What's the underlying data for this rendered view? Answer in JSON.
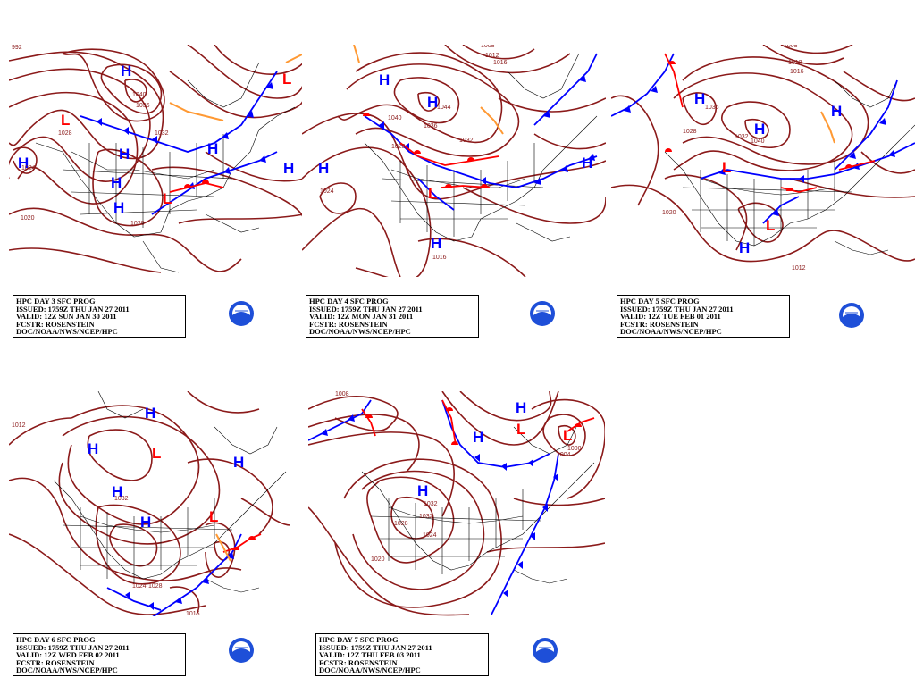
{
  "panels": [
    {
      "id": "day3",
      "title": "HPC DAY 3 SFC PROG",
      "issued": "ISSUED: 1759Z THU JAN 27 2011",
      "valid": "VALID: 12Z SUN JAN 30 2011",
      "fcstr": "FCSTR: ROSENSTEIN",
      "source": "DOC/NOAA/NWS/NCEP/HPC",
      "highs": [
        "H",
        "H",
        "H",
        "H",
        "H",
        "H"
      ],
      "lows": [
        "L",
        "L",
        "L"
      ],
      "isobars": [
        "992",
        "1024",
        "1028",
        "1024",
        "1040",
        "1036",
        "1032",
        "1020",
        "1020"
      ]
    },
    {
      "id": "day4",
      "title": "HPC DAY 4 SFC PROG",
      "issued": "ISSUED: 1759Z THU JAN 27 2011",
      "valid": "VALID: 12Z MON JAN 31 2011",
      "fcstr": "FCSTR: ROSENSTEIN",
      "source": "DOC/NOAA/NWS/NCEP/HPC",
      "highs": [
        "H",
        "H",
        "H",
        "H",
        "H"
      ],
      "lows": [
        "L"
      ],
      "isobars": [
        "1008",
        "1012",
        "1016",
        "1044",
        "1040",
        "1036",
        "1032",
        "1028",
        "1024",
        "1016"
      ]
    },
    {
      "id": "day5",
      "title": "HPC DAY 5 SFC PROG",
      "issued": "ISSUED: 1759Z THU JAN 27 2011",
      "valid": "VALID: 12Z TUE FEB 01 2011",
      "fcstr": "FCSTR: ROSENSTEIN",
      "source": "DOC/NOAA/NWS/NCEP/HPC",
      "highs": [
        "H",
        "H",
        "H",
        "H"
      ],
      "lows": [
        "L",
        "L"
      ],
      "isobars": [
        "1008",
        "1012",
        "1016",
        "1036",
        "1028",
        "1032",
        "1040",
        "1020",
        "1012"
      ]
    },
    {
      "id": "day6",
      "title": "HPC DAY 6 SFC PROG",
      "issued": "ISSUED: 1759Z THU JAN 27 2011",
      "valid": "VALID: 12Z WED FEB 02 2011",
      "fcstr": "FCSTR: ROSENSTEIN",
      "source": "DOC/NOAA/NWS/NCEP/HPC",
      "highs": [
        "H",
        "H",
        "H",
        "H",
        "H"
      ],
      "lows": [
        "L",
        "L"
      ],
      "isobars": [
        "1012",
        "1032",
        "1024",
        "1028",
        "1016"
      ]
    },
    {
      "id": "day7",
      "title": "HPC DAY 7 SFC PROG",
      "issued": "ISSUED: 1759Z THU JAN 27 2011",
      "valid": "VALID: 12Z THU FEB 03 2011",
      "fcstr": "FCSTR: ROSENSTEIN",
      "source": "DOC/NOAA/NWS/NCEP/HPC",
      "highs": [
        "H",
        "H",
        "H"
      ],
      "lows": [
        "L",
        "L"
      ],
      "isobars": [
        "1008",
        "1000",
        "1032",
        "1032",
        "1028",
        "1024",
        "1020",
        "1004"
      ]
    }
  ],
  "colors": {
    "isobar": "#8b1a1a",
    "high": "#0000ff",
    "low": "#ff0000",
    "cold_front": "#0000ff",
    "warm_front": "#ff0000",
    "trough": "#ff9933",
    "coast": "#000000"
  }
}
